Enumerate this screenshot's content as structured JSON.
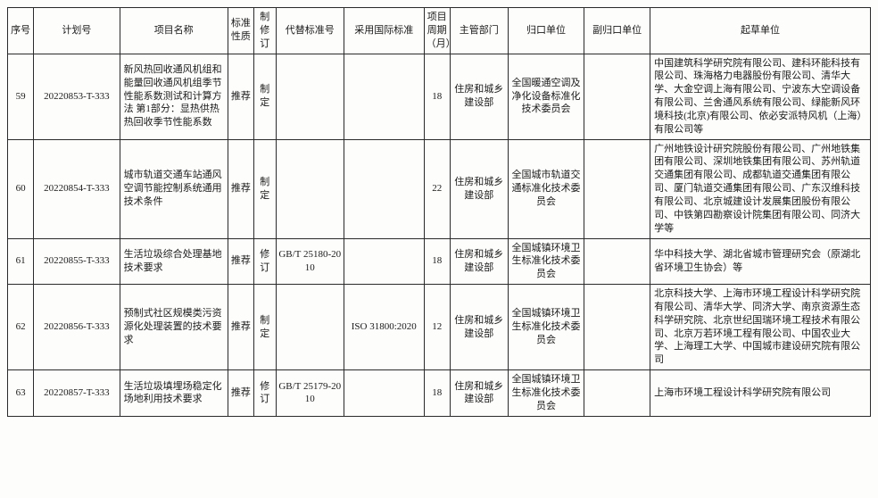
{
  "headers": {
    "seq": "序号",
    "plan": "计划号",
    "name": "项目名称",
    "nature": "标准性质",
    "rev": "制修订",
    "alt": "代替标准号",
    "intl": "采用国际标准",
    "cycle": "项目周期（月）",
    "dept": "主管部门",
    "unit": "归口单位",
    "side": "副归口单位",
    "draft": "起草单位"
  },
  "rows": [
    {
      "seq": "59",
      "plan": "20220853-T-333",
      "name": "新风热回收通风机组和能量回收通风机组季节性能系数测试和计算方法 第1部分：显热供热热回收季节性能系数",
      "nature": "推荐",
      "rev": "制定",
      "alt": "",
      "intl": "",
      "cycle": "18",
      "dept": "住房和城乡建设部",
      "unit": "全国暖通空调及净化设备标准化技术委员会",
      "side": "",
      "draft": "中国建筑科学研究院有限公司、建科环能科技有限公司、珠海格力电器股份有限公司、清华大学、大金空调上海有限公司、宁波东大空调设备有限公司、兰舍通风系统有限公司、绿能新风环境科技(北京)有限公司、依必安派特风机（上海）有限公司等"
    },
    {
      "seq": "60",
      "plan": "20220854-T-333",
      "name": "城市轨道交通车站通风空调节能控制系统通用技术条件",
      "nature": "推荐",
      "rev": "制定",
      "alt": "",
      "intl": "",
      "cycle": "22",
      "dept": "住房和城乡建设部",
      "unit": "全国城市轨道交通标准化技术委员会",
      "side": "",
      "draft": "广州地铁设计研究院股份有限公司、广州地铁集团有限公司、深圳地铁集团有限公司、苏州轨道交通集团有限公司、成都轨道交通集团有限公司、厦门轨道交通集团有限公司、广东汉维科技有限公司、北京城建设计发展集团股份有限公司、中铁第四勘察设计院集团有限公司、同济大学等"
    },
    {
      "seq": "61",
      "plan": "20220855-T-333",
      "name": "生活垃圾综合处理基地技术要求",
      "nature": "推荐",
      "rev": "修订",
      "alt": "GB/T 25180-2010",
      "intl": "",
      "cycle": "18",
      "dept": "住房和城乡建设部",
      "unit": "全国城镇环境卫生标准化技术委员会",
      "side": "",
      "draft": "华中科技大学、湖北省城市管理研究会（原湖北省环境卫生协会）等"
    },
    {
      "seq": "62",
      "plan": "20220856-T-333",
      "name": "预制式社区规模类污资源化处理装置的技术要求",
      "nature": "推荐",
      "rev": "制定",
      "alt": "",
      "intl": "ISO 31800:2020",
      "cycle": "12",
      "dept": "住房和城乡建设部",
      "unit": "全国城镇环境卫生标准化技术委员会",
      "side": "",
      "draft": "北京科技大学、上海市环境工程设计科学研究院有限公司、清华大学、同济大学、南京资源生态科学研究院、北京世纪国瑞环境工程技术有限公司、北京万若环境工程有限公司、中国农业大学、上海理工大学、中国城市建设研究院有限公司"
    },
    {
      "seq": "63",
      "plan": "20220857-T-333",
      "name": "生活垃圾填埋场稳定化场地利用技术要求",
      "nature": "推荐",
      "rev": "修订",
      "alt": "GB/T 25179-2010",
      "intl": "",
      "cycle": "18",
      "dept": "住房和城乡建设部",
      "unit": "全国城镇环境卫生标准化技术委员会",
      "side": "",
      "draft": "上海市环境工程设计科学研究院有限公司"
    }
  ]
}
